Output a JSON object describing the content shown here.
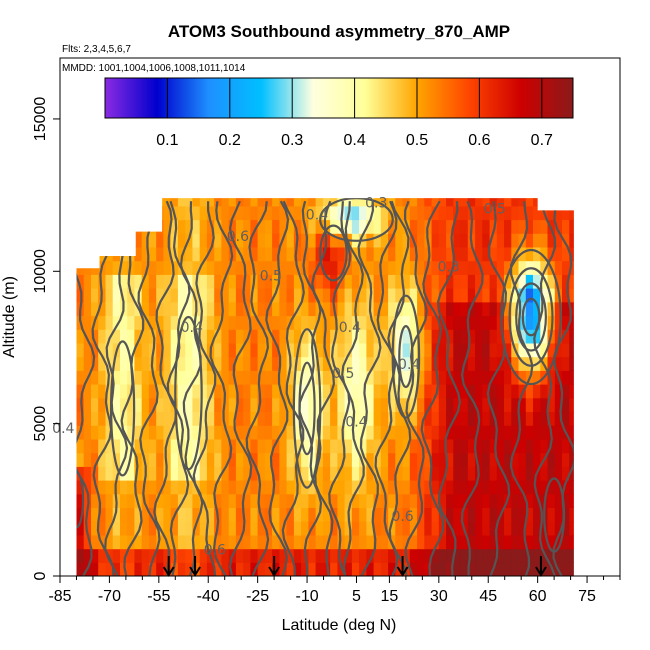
{
  "chart_data": {
    "type": "heatmap",
    "title": "ATOM3 Southbound asymmetry_870_AMP",
    "flights_note": "Flts: 2,3,4,5,6,7",
    "dates_note": "MMDD: 1001,1004,1006,1008,1011,1014",
    "xlabel": "Latitude (deg N)",
    "ylabel": "Altitude (m)",
    "xlim": [
      -85,
      85
    ],
    "ylim": [
      0,
      17000
    ],
    "x_ticks": [
      -85,
      -70,
      -55,
      -40,
      -25,
      -10,
      5,
      15,
      30,
      45,
      60,
      75
    ],
    "y_ticks": [
      0,
      5000,
      10000,
      15000
    ],
    "colorbar": {
      "range": [
        0,
        0.75
      ],
      "ticks": [
        0.1,
        0.2,
        0.3,
        0.4,
        0.5,
        0.6,
        0.7
      ],
      "colors": [
        "#8a2be2",
        "#0000cd",
        "#1e90ff",
        "#00bfff",
        "#ffffe0",
        "#ffff99",
        "#ffa500",
        "#ff4500",
        "#cd0000",
        "#8b1a1a"
      ]
    },
    "contour_labels": [
      {
        "text": "0.4",
        "x": -7,
        "y": 11700
      },
      {
        "text": "0.3",
        "x": 11,
        "y": 12100
      },
      {
        "text": "0.5",
        "x": 47,
        "y": 11900
      },
      {
        "text": "0.6",
        "x": -31,
        "y": 11000
      },
      {
        "text": "0.5",
        "x": -21,
        "y": 9700
      },
      {
        "text": "0.4",
        "x": -45,
        "y": 8000
      },
      {
        "text": "0.4",
        "x": 3,
        "y": 8000
      },
      {
        "text": "0.5",
        "x": 1,
        "y": 6500
      },
      {
        "text": "0.4",
        "x": 5,
        "y": 4900
      },
      {
        "text": "0.4",
        "x": 21,
        "y": 6800
      },
      {
        "text": "0.3",
        "x": 33,
        "y": 10000
      },
      {
        "text": "0.4",
        "x": -84,
        "y": 4700
      },
      {
        "text": "0.6",
        "x": -38,
        "y": 700
      },
      {
        "text": "0.6",
        "x": 19,
        "y": 1800
      }
    ],
    "flight_markers_lat": [
      -52,
      -44,
      -20,
      19,
      61
    ],
    "data_extent": {
      "lat": [
        -80,
        71
      ],
      "alt": [
        0,
        12400
      ],
      "column_tops": [
        {
          "lat": -80,
          "top": 10100
        },
        {
          "lat": -73,
          "top": 10500
        },
        {
          "lat": -62,
          "top": 11300
        },
        {
          "lat": -54,
          "top": 12400
        },
        {
          "lat": 20,
          "top": 12400
        },
        {
          "lat": 60,
          "top": 12000
        },
        {
          "lat": 65,
          "top": 12000
        },
        {
          "lat": 71,
          "top": 10100
        }
      ]
    }
  }
}
